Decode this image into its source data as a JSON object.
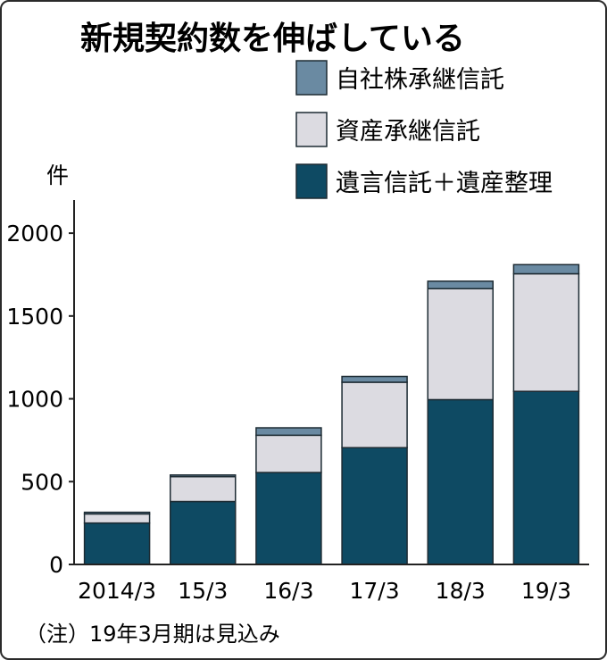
{
  "chart_data": {
    "type": "bar",
    "stacked": true,
    "title": "新規契約数を伸ばしている",
    "ylabel": "件",
    "xlabel": "",
    "ylim": [
      0,
      2200
    ],
    "yticks": [
      0,
      500,
      1000,
      1500,
      2000
    ],
    "categories": [
      "2014/3",
      "15/3",
      "16/3",
      "17/3",
      "18/3",
      "19/3"
    ],
    "series": [
      {
        "name": "遺言信託＋遺産整理",
        "color": "#0e4a63",
        "values": [
          250,
          380,
          555,
          705,
          995,
          1045
        ]
      },
      {
        "name": "資産承継信託",
        "color": "#dcdbe1",
        "values": [
          55,
          150,
          225,
          395,
          670,
          710
        ]
      },
      {
        "name": "自社株承継信託",
        "color": "#6a8aa2",
        "values": [
          10,
          10,
          45,
          35,
          45,
          55
        ]
      }
    ],
    "legend_order": [
      "自社株承継信託",
      "資産承継信託",
      "遺言信託＋遺産整理"
    ],
    "legend_position": "top-right",
    "note": "（注）19年3月期は見込み"
  }
}
